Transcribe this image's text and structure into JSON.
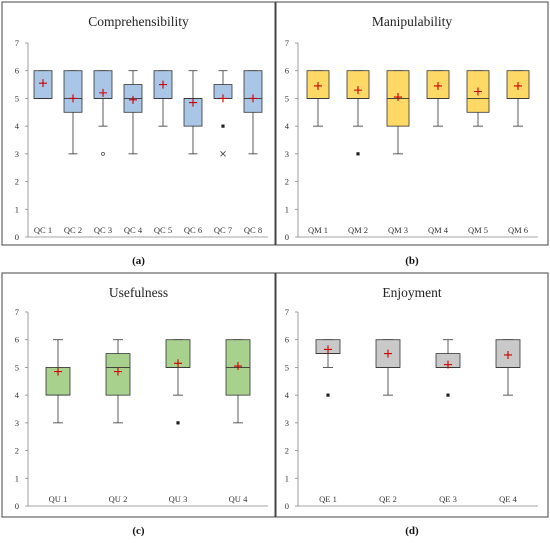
{
  "chart_data": [
    {
      "type": "box",
      "title": "Comprehensibility",
      "caption": "(a)",
      "ylim": [
        0,
        7
      ],
      "yticks": [
        0,
        1,
        2,
        3,
        4,
        5,
        6,
        7
      ],
      "fill": "#a9c6e6",
      "categories": [
        "QC 1",
        "QC 2",
        "QC 3",
        "QC 4",
        "QC 5",
        "QC 6",
        "QC 7",
        "QC 8"
      ],
      "boxes": [
        {
          "min": 5,
          "q1": 5,
          "median": 5,
          "q3": 6,
          "max": 6,
          "mean": 5.55,
          "outliers": []
        },
        {
          "min": 3,
          "q1": 4.5,
          "median": 5,
          "q3": 6,
          "max": 6,
          "mean": 5.0,
          "outliers": []
        },
        {
          "min": 4,
          "q1": 5,
          "median": 5,
          "q3": 6,
          "max": 6,
          "mean": 5.2,
          "outliers": [
            3
          ]
        },
        {
          "min": 3,
          "q1": 4.5,
          "median": 5,
          "q3": 5.5,
          "max": 6,
          "mean": 4.95,
          "outliers": []
        },
        {
          "min": 4,
          "q1": 5,
          "median": 5,
          "q3": 6,
          "max": 6,
          "mean": 5.5,
          "outliers": []
        },
        {
          "min": 3,
          "q1": 4,
          "median": 5,
          "q3": 5,
          "max": 6,
          "mean": 4.85,
          "outliers": []
        },
        {
          "min": 5,
          "q1": 5,
          "median": 5,
          "q3": 5.5,
          "max": 6,
          "mean": 5.0,
          "outliers": [
            4,
            3
          ]
        },
        {
          "min": 3,
          "q1": 4.5,
          "median": 5,
          "q3": 6,
          "max": 6,
          "mean": 5.0,
          "outliers": []
        }
      ]
    },
    {
      "type": "box",
      "title": "Manipulability",
      "caption": "(b)",
      "ylim": [
        0,
        7
      ],
      "yticks": [
        0,
        1,
        2,
        3,
        4,
        5,
        6,
        7
      ],
      "fill": "#ffd966",
      "categories": [
        "QM 1",
        "QM 2",
        "QM 3",
        "QM 4",
        "QM 5",
        "QM 6"
      ],
      "boxes": [
        {
          "min": 4,
          "q1": 5,
          "median": 5,
          "q3": 6,
          "max": 6,
          "mean": 5.45,
          "outliers": []
        },
        {
          "min": 4,
          "q1": 5,
          "median": 5,
          "q3": 6,
          "max": 6,
          "mean": 5.3,
          "outliers": [
            3
          ]
        },
        {
          "min": 3,
          "q1": 4,
          "median": 5,
          "q3": 6,
          "max": 6,
          "mean": 5.05,
          "outliers": []
        },
        {
          "min": 4,
          "q1": 5,
          "median": 5,
          "q3": 6,
          "max": 6,
          "mean": 5.45,
          "outliers": []
        },
        {
          "min": 4,
          "q1": 4.5,
          "median": 5,
          "q3": 6,
          "max": 6,
          "mean": 5.25,
          "outliers": []
        },
        {
          "min": 4,
          "q1": 5,
          "median": 5,
          "q3": 6,
          "max": 6,
          "mean": 5.45,
          "outliers": []
        }
      ]
    },
    {
      "type": "box",
      "title": "Usefulness",
      "caption": "(c)",
      "ylim": [
        0,
        7
      ],
      "yticks": [
        0,
        1,
        2,
        3,
        4,
        5,
        6,
        7
      ],
      "fill": "#a9d18e",
      "categories": [
        "QU 1",
        "QU 2",
        "QU 3",
        "QU 4"
      ],
      "boxes": [
        {
          "min": 3,
          "q1": 4,
          "median": 4,
          "q3": 5,
          "max": 6,
          "mean": 4.85,
          "outliers": []
        },
        {
          "min": 3,
          "q1": 4,
          "median": 5,
          "q3": 5.5,
          "max": 6,
          "mean": 4.85,
          "outliers": []
        },
        {
          "min": 4,
          "q1": 5,
          "median": 5,
          "q3": 6,
          "max": 6,
          "mean": 5.15,
          "outliers": [
            3
          ]
        },
        {
          "min": 3,
          "q1": 4,
          "median": 5,
          "q3": 6,
          "max": 6,
          "mean": 5.05,
          "outliers": []
        }
      ]
    },
    {
      "type": "box",
      "title": "Enjoyment",
      "caption": "(d)",
      "ylim": [
        0,
        7
      ],
      "yticks": [
        0,
        1,
        2,
        3,
        4,
        5,
        6,
        7
      ],
      "fill": "#c9c9c9",
      "categories": [
        "QE 1",
        "QE 2",
        "QE 3",
        "QE 4"
      ],
      "boxes": [
        {
          "min": 5,
          "q1": 5.5,
          "median": 5.5,
          "q3": 6,
          "max": 6,
          "mean": 5.65,
          "outliers": [
            4
          ]
        },
        {
          "min": 4,
          "q1": 5,
          "median": 5,
          "q3": 6,
          "max": 6,
          "mean": 5.5,
          "outliers": []
        },
        {
          "min": 5,
          "q1": 5,
          "median": 5,
          "q3": 5.5,
          "max": 6,
          "mean": 5.1,
          "outliers": [
            4
          ]
        },
        {
          "min": 4,
          "q1": 5,
          "median": 5,
          "q3": 6,
          "max": 6,
          "mean": 5.45,
          "outliers": []
        }
      ]
    }
  ],
  "style": {
    "mean_marker_color": "#cc0000",
    "outline_color": "#333333",
    "frame_color": "#444444"
  }
}
